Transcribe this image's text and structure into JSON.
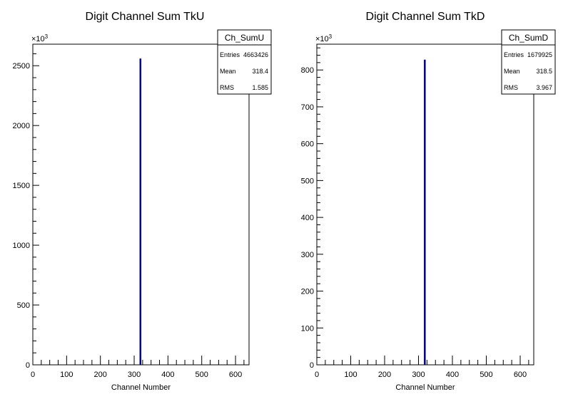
{
  "chart_data": [
    {
      "type": "bar",
      "title": "Digit Channel Sum TkU",
      "xlabel": "Channel Number",
      "ylabel": "",
      "y_exponent_label": "×10",
      "y_exponent_power": "3",
      "xlim": [
        0,
        640
      ],
      "ylim": [
        0,
        2680
      ],
      "xticks": [
        0,
        100,
        200,
        300,
        400,
        500,
        600
      ],
      "yticks": [
        0,
        500,
        1000,
        1500,
        2000,
        2500
      ],
      "xtick_labels": [
        "0",
        "100",
        "200",
        "300",
        "400",
        "500",
        "600"
      ],
      "ytick_labels": [
        "0",
        "500",
        "1000",
        "1500",
        "2000",
        "2500"
      ],
      "bins": [
        {
          "x": 318,
          "value": 2560
        }
      ],
      "bar_color": "#000080",
      "grid": false,
      "stats": {
        "name": "Ch_SumU",
        "rows": [
          {
            "label": "Entries",
            "value": "4663426"
          },
          {
            "label": "Mean",
            "value": "318.4"
          },
          {
            "label": "RMS",
            "value": "1.585"
          }
        ]
      }
    },
    {
      "type": "bar",
      "title": "Digit Channel Sum TkD",
      "xlabel": "Channel Number",
      "ylabel": "",
      "y_exponent_label": "×10",
      "y_exponent_power": "3",
      "xlim": [
        0,
        640
      ],
      "ylim": [
        0,
        870
      ],
      "xticks": [
        0,
        100,
        200,
        300,
        400,
        500,
        600
      ],
      "yticks": [
        0,
        100,
        200,
        300,
        400,
        500,
        600,
        700,
        800
      ],
      "xtick_labels": [
        "0",
        "100",
        "200",
        "300",
        "400",
        "500",
        "600"
      ],
      "ytick_labels": [
        "0",
        "100",
        "200",
        "300",
        "400",
        "500",
        "600",
        "700",
        "800"
      ],
      "bins": [
        {
          "x": 318,
          "value": 828
        }
      ],
      "bar_color": "#000080",
      "grid": false,
      "stats": {
        "name": "Ch_SumD",
        "rows": [
          {
            "label": "Entries",
            "value": "1679925"
          },
          {
            "label": "Mean",
            "value": "318.5"
          },
          {
            "label": "RMS",
            "value": "3.967"
          }
        ]
      }
    }
  ]
}
